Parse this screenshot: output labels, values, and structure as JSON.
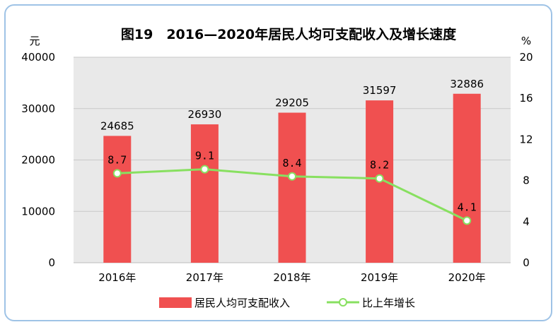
{
  "chart_data": {
    "type": "bar",
    "title": "图19　2016—2020年居民人均可支配收入及增长速度",
    "categories": [
      "2016年",
      "2017年",
      "2018年",
      "2019年",
      "2020年"
    ],
    "series": [
      {
        "name": "居民人均可支配收入",
        "type": "bar",
        "axis": "left",
        "values": [
          24685,
          26930,
          29205,
          31597,
          32886
        ],
        "color": "#f05050"
      },
      {
        "name": "比上年增长",
        "type": "line",
        "axis": "right",
        "values": [
          8.7,
          9.1,
          8.4,
          8.2,
          4.1
        ],
        "color": "#88e060"
      }
    ],
    "y_left": {
      "unit": "元",
      "ylim": [
        0,
        40000
      ],
      "ticks": [
        "0",
        "10000",
        "20000",
        "30000",
        "40000"
      ]
    },
    "y_right": {
      "unit": "%",
      "ylim": [
        0,
        20
      ],
      "ticks": [
        "0",
        "4",
        "8",
        "12",
        "16",
        "20"
      ]
    },
    "value_labels_left": [
      "24685",
      "26930",
      "29205",
      "31597",
      "32886"
    ],
    "value_labels_right": [
      "8.7",
      "9.1",
      "8.4",
      "8.2",
      "4.1"
    ],
    "grid": true,
    "legend": "bottom",
    "plot_background": "#e9e9e9"
  }
}
